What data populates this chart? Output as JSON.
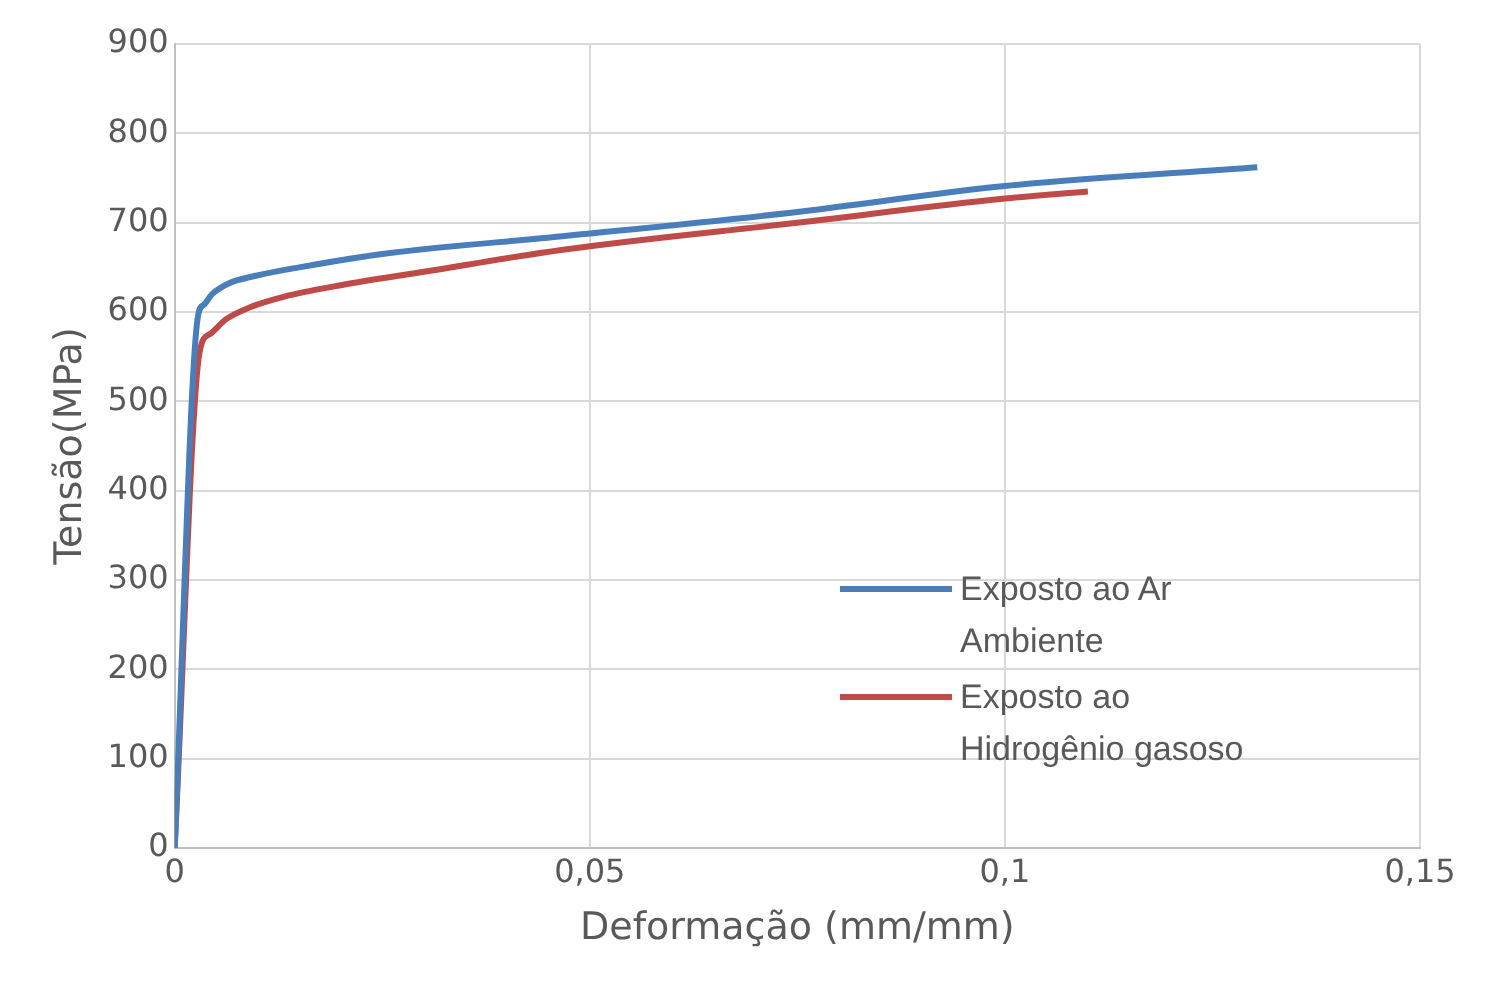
{
  "chart_data": {
    "type": "line",
    "xlabel": "Deformação (mm/mm)",
    "ylabel": "Tensão(MPa)",
    "xlim": [
      0,
      0.15
    ],
    "xticks": [
      0,
      {
        "value": 0.05,
        "label": "0,05"
      },
      {
        "value": 0.1,
        "label": "0,1"
      },
      {
        "value": 0.15,
        "label": "0,15"
      }
    ],
    "ylim": [
      0,
      900
    ],
    "yticks": [
      0,
      100,
      200,
      300,
      400,
      500,
      600,
      700,
      800,
      900
    ],
    "grid": true,
    "legend": "bottom right",
    "marker": "none",
    "line_style": "solid",
    "series": [
      {
        "name": "Exposto ao Ar Ambiente",
        "color": "#4a7ebb",
        "x": [
          0,
          0.0028,
          0.0035,
          0.0045,
          0.0065,
          0.0095,
          0.015,
          0.025,
          0.047,
          0.075,
          0.1,
          0.1304
        ],
        "values": [
          0,
          595,
          608,
          620,
          632,
          640,
          650,
          665,
          685,
          712,
          741,
          762
        ]
      },
      {
        "name": "Exposto ao Hidrogênio gasoso",
        "color": "#be4b48",
        "x": [
          0,
          0.003,
          0.0042,
          0.0062,
          0.009,
          0.0131,
          0.02,
          0.03,
          0.047,
          0.075,
          0.1,
          0.11
        ],
        "values": [
          0,
          555,
          575,
          592,
          605,
          617,
          630,
          645,
          670,
          700,
          727,
          735
        ]
      }
    ]
  }
}
